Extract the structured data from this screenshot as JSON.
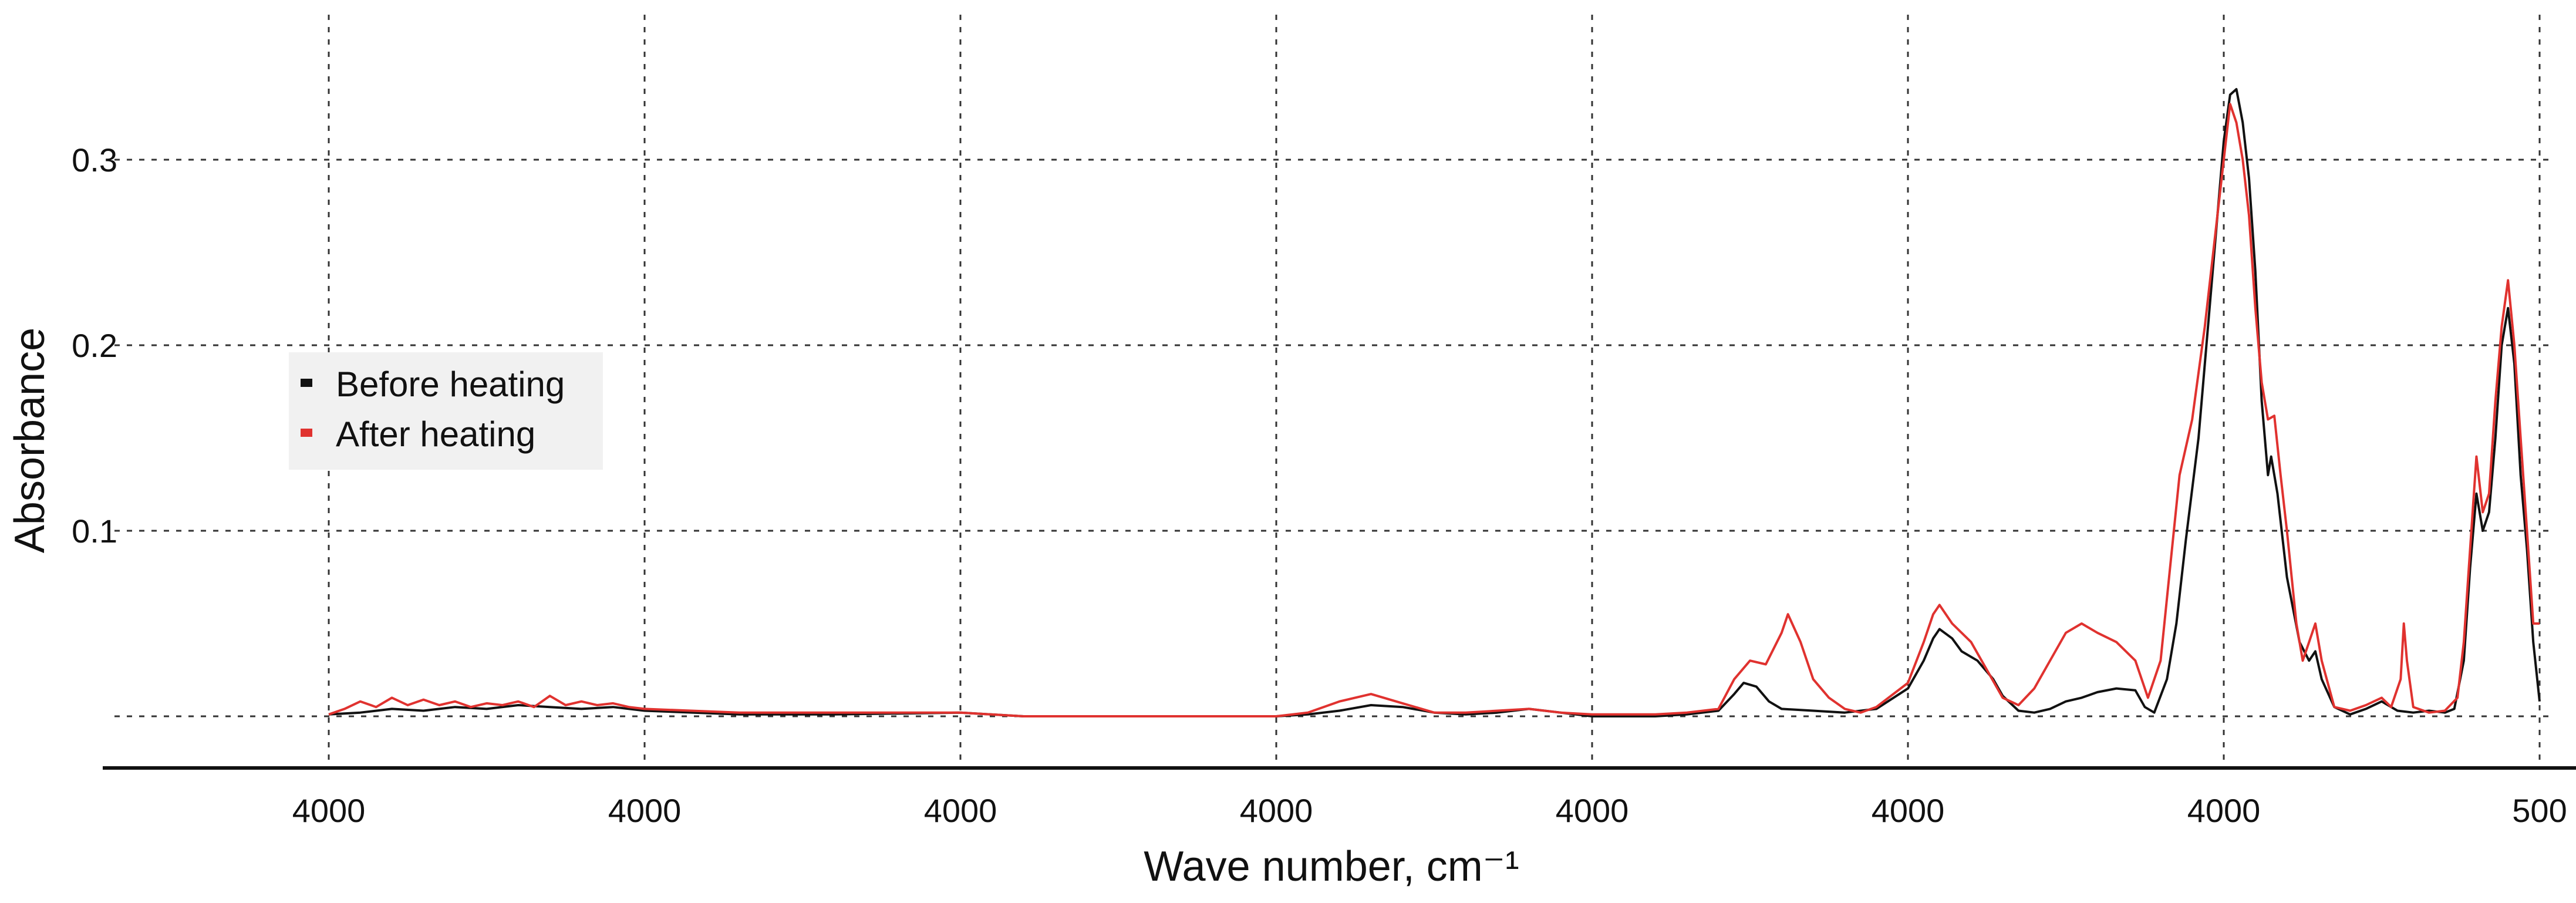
{
  "chart_data": {
    "type": "line",
    "xlabel": "Wave number, cm⁻¹",
    "ylabel": "Absorbance",
    "x_tick_labels": [
      "4000",
      "4000",
      "4000",
      "4000",
      "4000",
      "4000",
      "4000",
      "500"
    ],
    "y_ticks": [
      {
        "value": 0.1,
        "label": "0.1"
      },
      {
        "value": 0.2,
        "label": "0.2"
      },
      {
        "value": 0.3,
        "label": "0.3"
      }
    ],
    "x_range_index": [
      -0.7,
      7.0
    ],
    "ylim": [
      -0.028,
      0.38
    ],
    "grid": true,
    "legend_position": "middle-left",
    "series": [
      {
        "name": "Before heating",
        "color": "#111111",
        "points": [
          [
            0.0,
            0.001
          ],
          [
            0.1,
            0.002
          ],
          [
            0.2,
            0.004
          ],
          [
            0.3,
            0.003
          ],
          [
            0.4,
            0.005
          ],
          [
            0.5,
            0.004
          ],
          [
            0.6,
            0.006
          ],
          [
            0.7,
            0.005
          ],
          [
            0.8,
            0.004
          ],
          [
            0.9,
            0.005
          ],
          [
            1.0,
            0.003
          ],
          [
            1.3,
            0.001
          ],
          [
            1.6,
            0.001
          ],
          [
            2.0,
            0.002
          ],
          [
            2.2,
            0.0
          ],
          [
            2.6,
            0.0
          ],
          [
            3.0,
            0.0
          ],
          [
            3.1,
            0.001
          ],
          [
            3.2,
            0.003
          ],
          [
            3.3,
            0.006
          ],
          [
            3.4,
            0.005
          ],
          [
            3.5,
            0.002
          ],
          [
            3.6,
            0.001
          ],
          [
            3.7,
            0.002
          ],
          [
            3.8,
            0.004
          ],
          [
            3.9,
            0.002
          ],
          [
            4.0,
            0.0
          ],
          [
            4.2,
            0.0
          ],
          [
            4.3,
            0.001
          ],
          [
            4.4,
            0.003
          ],
          [
            4.45,
            0.012
          ],
          [
            4.48,
            0.018
          ],
          [
            4.52,
            0.016
          ],
          [
            4.56,
            0.008
          ],
          [
            4.6,
            0.004
          ],
          [
            4.7,
            0.003
          ],
          [
            4.8,
            0.002
          ],
          [
            4.9,
            0.004
          ],
          [
            5.0,
            0.015
          ],
          [
            5.05,
            0.03
          ],
          [
            5.08,
            0.042
          ],
          [
            5.1,
            0.047
          ],
          [
            5.14,
            0.042
          ],
          [
            5.17,
            0.035
          ],
          [
            5.22,
            0.03
          ],
          [
            5.27,
            0.02
          ],
          [
            5.3,
            0.011
          ],
          [
            5.35,
            0.003
          ],
          [
            5.4,
            0.002
          ],
          [
            5.45,
            0.004
          ],
          [
            5.5,
            0.008
          ],
          [
            5.55,
            0.01
          ],
          [
            5.6,
            0.013
          ],
          [
            5.66,
            0.015
          ],
          [
            5.72,
            0.014
          ],
          [
            5.75,
            0.005
          ],
          [
            5.78,
            0.002
          ],
          [
            5.82,
            0.02
          ],
          [
            5.85,
            0.05
          ],
          [
            5.88,
            0.095
          ],
          [
            5.92,
            0.15
          ],
          [
            5.96,
            0.23
          ],
          [
            6.0,
            0.31
          ],
          [
            6.02,
            0.335
          ],
          [
            6.04,
            0.338
          ],
          [
            6.06,
            0.32
          ],
          [
            6.08,
            0.29
          ],
          [
            6.1,
            0.24
          ],
          [
            6.12,
            0.17
          ],
          [
            6.14,
            0.13
          ],
          [
            6.15,
            0.14
          ],
          [
            6.17,
            0.12
          ],
          [
            6.2,
            0.075
          ],
          [
            6.24,
            0.04
          ],
          [
            6.27,
            0.03
          ],
          [
            6.29,
            0.035
          ],
          [
            6.31,
            0.02
          ],
          [
            6.35,
            0.005
          ],
          [
            6.4,
            0.001
          ],
          [
            6.45,
            0.004
          ],
          [
            6.5,
            0.008
          ],
          [
            6.55,
            0.003
          ],
          [
            6.6,
            0.002
          ],
          [
            6.65,
            0.003
          ],
          [
            6.7,
            0.002
          ],
          [
            6.73,
            0.004
          ],
          [
            6.76,
            0.03
          ],
          [
            6.78,
            0.08
          ],
          [
            6.8,
            0.12
          ],
          [
            6.82,
            0.1
          ],
          [
            6.84,
            0.11
          ],
          [
            6.86,
            0.15
          ],
          [
            6.88,
            0.2
          ],
          [
            6.9,
            0.22
          ],
          [
            6.92,
            0.19
          ],
          [
            6.94,
            0.13
          ],
          [
            6.96,
            0.09
          ],
          [
            6.98,
            0.04
          ],
          [
            7.0,
            0.008
          ]
        ]
      },
      {
        "name": "After heating",
        "color": "#e0322f",
        "points": [
          [
            0.0,
            0.001
          ],
          [
            0.05,
            0.004
          ],
          [
            0.1,
            0.008
          ],
          [
            0.15,
            0.005
          ],
          [
            0.2,
            0.01
          ],
          [
            0.25,
            0.006
          ],
          [
            0.3,
            0.009
          ],
          [
            0.35,
            0.006
          ],
          [
            0.4,
            0.008
          ],
          [
            0.45,
            0.005
          ],
          [
            0.5,
            0.007
          ],
          [
            0.55,
            0.006
          ],
          [
            0.6,
            0.008
          ],
          [
            0.65,
            0.005
          ],
          [
            0.7,
            0.011
          ],
          [
            0.75,
            0.006
          ],
          [
            0.8,
            0.008
          ],
          [
            0.85,
            0.006
          ],
          [
            0.9,
            0.007
          ],
          [
            0.95,
            0.005
          ],
          [
            1.0,
            0.004
          ],
          [
            1.3,
            0.002
          ],
          [
            1.6,
            0.002
          ],
          [
            2.0,
            0.002
          ],
          [
            2.2,
            0.0
          ],
          [
            2.6,
            0.0
          ],
          [
            3.0,
            0.0
          ],
          [
            3.1,
            0.002
          ],
          [
            3.2,
            0.008
          ],
          [
            3.3,
            0.012
          ],
          [
            3.4,
            0.007
          ],
          [
            3.5,
            0.002
          ],
          [
            3.6,
            0.002
          ],
          [
            3.7,
            0.003
          ],
          [
            3.8,
            0.004
          ],
          [
            3.9,
            0.002
          ],
          [
            4.0,
            0.001
          ],
          [
            4.2,
            0.001
          ],
          [
            4.3,
            0.002
          ],
          [
            4.4,
            0.004
          ],
          [
            4.45,
            0.02
          ],
          [
            4.5,
            0.03
          ],
          [
            4.55,
            0.028
          ],
          [
            4.6,
            0.045
          ],
          [
            4.62,
            0.055
          ],
          [
            4.66,
            0.04
          ],
          [
            4.7,
            0.02
          ],
          [
            4.75,
            0.01
          ],
          [
            4.8,
            0.004
          ],
          [
            4.85,
            0.002
          ],
          [
            4.9,
            0.005
          ],
          [
            5.0,
            0.018
          ],
          [
            5.05,
            0.04
          ],
          [
            5.08,
            0.055
          ],
          [
            5.1,
            0.06
          ],
          [
            5.14,
            0.05
          ],
          [
            5.2,
            0.04
          ],
          [
            5.25,
            0.025
          ],
          [
            5.3,
            0.01
          ],
          [
            5.35,
            0.006
          ],
          [
            5.4,
            0.015
          ],
          [
            5.45,
            0.03
          ],
          [
            5.5,
            0.045
          ],
          [
            5.55,
            0.05
          ],
          [
            5.6,
            0.045
          ],
          [
            5.66,
            0.04
          ],
          [
            5.72,
            0.03
          ],
          [
            5.76,
            0.01
          ],
          [
            5.8,
            0.03
          ],
          [
            5.83,
            0.08
          ],
          [
            5.86,
            0.13
          ],
          [
            5.9,
            0.16
          ],
          [
            5.94,
            0.21
          ],
          [
            5.98,
            0.27
          ],
          [
            6.0,
            0.3
          ],
          [
            6.02,
            0.33
          ],
          [
            6.04,
            0.32
          ],
          [
            6.06,
            0.3
          ],
          [
            6.08,
            0.27
          ],
          [
            6.1,
            0.22
          ],
          [
            6.12,
            0.18
          ],
          [
            6.14,
            0.16
          ],
          [
            6.16,
            0.162
          ],
          [
            6.18,
            0.13
          ],
          [
            6.2,
            0.1
          ],
          [
            6.23,
            0.05
          ],
          [
            6.25,
            0.03
          ],
          [
            6.27,
            0.04
          ],
          [
            6.29,
            0.05
          ],
          [
            6.31,
            0.03
          ],
          [
            6.35,
            0.005
          ],
          [
            6.4,
            0.003
          ],
          [
            6.45,
            0.006
          ],
          [
            6.5,
            0.01
          ],
          [
            6.53,
            0.005
          ],
          [
            6.56,
            0.02
          ],
          [
            6.57,
            0.05
          ],
          [
            6.58,
            0.03
          ],
          [
            6.6,
            0.005
          ],
          [
            6.65,
            0.002
          ],
          [
            6.7,
            0.003
          ],
          [
            6.74,
            0.01
          ],
          [
            6.76,
            0.04
          ],
          [
            6.78,
            0.09
          ],
          [
            6.8,
            0.14
          ],
          [
            6.82,
            0.11
          ],
          [
            6.84,
            0.12
          ],
          [
            6.86,
            0.17
          ],
          [
            6.88,
            0.21
          ],
          [
            6.9,
            0.235
          ],
          [
            6.92,
            0.2
          ],
          [
            6.94,
            0.15
          ],
          [
            6.96,
            0.1
          ],
          [
            6.98,
            0.05
          ],
          [
            7.0,
            0.05
          ]
        ]
      }
    ]
  }
}
